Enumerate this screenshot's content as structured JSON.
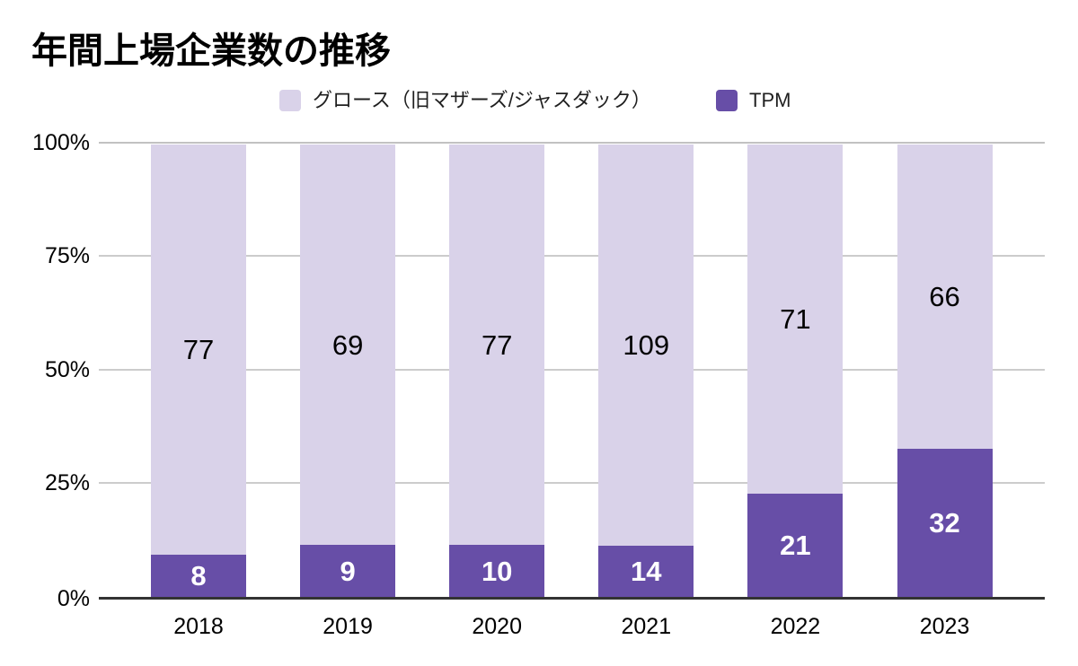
{
  "chart_data": {
    "type": "bar",
    "stacked": "percent",
    "title": "年間上場企業数の推移",
    "categories": [
      "2018",
      "2019",
      "2020",
      "2021",
      "2022",
      "2023"
    ],
    "series": [
      {
        "name": "グロース（旧マザーズ/ジャスダック）",
        "values": [
          77,
          69,
          77,
          109,
          71,
          66
        ],
        "color": "#D9D2E9",
        "label_color": "#000000",
        "label_bold": false,
        "stack": "top"
      },
      {
        "name": "TPM",
        "values": [
          8,
          9,
          10,
          14,
          21,
          32
        ],
        "color": "#674EA7",
        "label_color": "#FFFFFF",
        "label_bold": true,
        "stack": "bottom"
      }
    ],
    "y_axis": {
      "ticks": [
        {
          "label": "0%",
          "value": 0
        },
        {
          "label": "25%",
          "value": 25
        },
        {
          "label": "50%",
          "value": 50
        },
        {
          "label": "75%",
          "value": 75
        },
        {
          "label": "100%",
          "value": 100
        }
      ],
      "range": [
        0,
        100
      ],
      "gridlines": true,
      "gridline_color": "#CCCCCC",
      "top_line_color": "#C2C2C2",
      "baseline_color": "#333333"
    },
    "legend_position": "top"
  }
}
